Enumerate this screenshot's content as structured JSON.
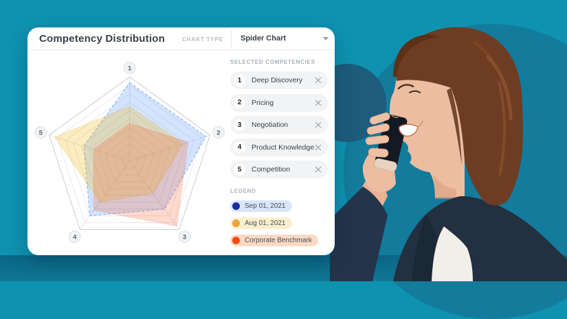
{
  "header": {
    "title": "Competency Distribution",
    "chart_type_label": "CHART TYPE",
    "chart_type_value": "Spider Chart"
  },
  "competencies": {
    "heading": "SELECTED COMPETENCIES",
    "items": [
      {
        "num": "1",
        "label": "Deep Discovery"
      },
      {
        "num": "2",
        "label": "Pricing"
      },
      {
        "num": "3",
        "label": "Negotiation"
      },
      {
        "num": "4",
        "label": "Product Knowledge"
      },
      {
        "num": "5",
        "label": "Competition"
      }
    ]
  },
  "legend": {
    "heading": "LEGEND",
    "items": [
      {
        "label": "Sep 01, 2021",
        "dot_color": "#1b2fa0",
        "bg": "#d9e6f9"
      },
      {
        "label": "Aug 01, 2021",
        "dot_color": "#e9a43e",
        "bg": "#f9efcd"
      },
      {
        "label": "Corporate Benchmark",
        "dot_color": "#f54a10",
        "bg": "#fbd9c5"
      }
    ]
  },
  "chart_data": {
    "type": "radar",
    "title": "Competency Distribution",
    "axes": [
      "1",
      "2",
      "3",
      "4",
      "5"
    ],
    "axis_names": [
      "Deep Discovery",
      "Pricing",
      "Negotiation",
      "Product Knowledge",
      "Competition"
    ],
    "rings": 10,
    "value_range": [
      0,
      100
    ],
    "grid": true,
    "legend_position": "right",
    "series": [
      {
        "name": "Sep 01, 2021",
        "values": [
          93,
          95,
          70,
          80,
          57
        ],
        "color": "#4285f4",
        "fill": "rgba(66,133,244,0.22)",
        "stroke": "rgba(66,133,244,0.55)",
        "dash": "4 3"
      },
      {
        "name": "Aug 01, 2021",
        "values": [
          65,
          67,
          47,
          60,
          93
        ],
        "color": "#f4b400",
        "fill": "rgba(244,180,0,0.25)",
        "stroke": "rgba(201,146,15,0.55)",
        "dash": "1 3"
      },
      {
        "name": "Corporate Benchmark",
        "values": [
          45,
          73,
          95,
          72,
          45
        ],
        "color": "#f4511e",
        "fill": "rgba(244,81,30,0.22)",
        "stroke": "rgba(244,81,30,0.50)",
        "dash": "1 3"
      }
    ],
    "colors": {
      "background": "#0e92b0",
      "band": "#0a6a88",
      "circle_large": "#137b9c",
      "circle_small": "#1d5c7c"
    }
  }
}
